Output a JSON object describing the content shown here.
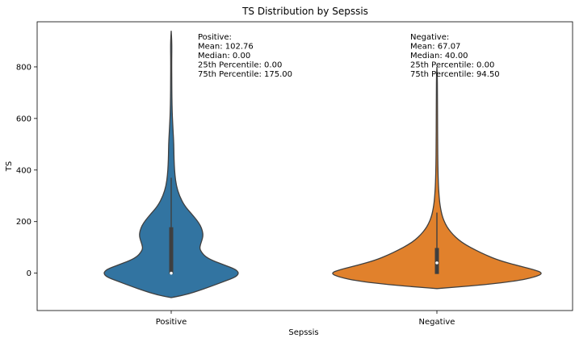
{
  "chart_data": {
    "type": "violin",
    "title": "TS Distribution by Sepssis",
    "xlabel": "Sepssis",
    "ylabel": "TS",
    "categories": [
      "Positive",
      "Negative"
    ],
    "ylim": [
      -145,
      975
    ],
    "yticks": [
      0,
      200,
      400,
      600,
      800
    ],
    "ytick_labels": [
      "0",
      "200",
      "400",
      "600",
      "800"
    ],
    "colors": [
      "#3274a1",
      "#e1812c"
    ],
    "series": [
      {
        "category": "Positive",
        "color": "#3274a1",
        "stats": {
          "min": 0,
          "q1": 0,
          "median": 0,
          "q3": 175,
          "whisker_high": 370,
          "max": 940
        },
        "density_profile": [
          [
            -95,
            0.0
          ],
          [
            -85,
            0.2
          ],
          [
            -70,
            0.38
          ],
          [
            -50,
            0.6
          ],
          [
            -30,
            0.8
          ],
          [
            -15,
            0.95
          ],
          [
            0,
            1.0
          ],
          [
            15,
            0.95
          ],
          [
            30,
            0.8
          ],
          [
            50,
            0.6
          ],
          [
            65,
            0.5
          ],
          [
            80,
            0.45
          ],
          [
            95,
            0.42
          ],
          [
            110,
            0.43
          ],
          [
            125,
            0.45
          ],
          [
            145,
            0.47
          ],
          [
            165,
            0.46
          ],
          [
            185,
            0.43
          ],
          [
            205,
            0.38
          ],
          [
            230,
            0.3
          ],
          [
            260,
            0.2
          ],
          [
            300,
            0.12
          ],
          [
            340,
            0.075
          ],
          [
            380,
            0.055
          ],
          [
            420,
            0.045
          ],
          [
            460,
            0.04
          ],
          [
            500,
            0.038
          ],
          [
            540,
            0.03
          ],
          [
            580,
            0.022
          ],
          [
            620,
            0.015
          ],
          [
            680,
            0.01
          ],
          [
            750,
            0.008
          ],
          [
            820,
            0.007
          ],
          [
            870,
            0.009
          ],
          [
            900,
            0.008
          ],
          [
            940,
            0.0
          ]
        ],
        "annotation": [
          "Positive:",
          "Mean: 102.76",
          "Median: 0.00",
          "25th Percentile: 0.00",
          "75th Percentile: 175.00"
        ]
      },
      {
        "category": "Negative",
        "color": "#e1812c",
        "stats": {
          "min": 0,
          "q1": 0,
          "median": 40,
          "q3": 94.5,
          "whisker_high": 235,
          "max": 800
        },
        "density_profile": [
          [
            -60,
            0.0
          ],
          [
            -55,
            0.15
          ],
          [
            -45,
            0.45
          ],
          [
            -30,
            0.75
          ],
          [
            -15,
            0.92
          ],
          [
            0,
            1.0
          ],
          [
            15,
            0.9
          ],
          [
            30,
            0.75
          ],
          [
            50,
            0.58
          ],
          [
            70,
            0.46
          ],
          [
            90,
            0.36
          ],
          [
            110,
            0.27
          ],
          [
            130,
            0.2
          ],
          [
            150,
            0.15
          ],
          [
            170,
            0.11
          ],
          [
            190,
            0.08
          ],
          [
            220,
            0.05
          ],
          [
            260,
            0.03
          ],
          [
            300,
            0.02
          ],
          [
            350,
            0.013
          ],
          [
            420,
            0.009
          ],
          [
            500,
            0.007
          ],
          [
            600,
            0.006
          ],
          [
            700,
            0.005
          ],
          [
            760,
            0.004
          ],
          [
            800,
            0.0
          ]
        ],
        "annotation": [
          "Negative:",
          "Mean: 67.07",
          "Median: 40.00",
          "25th Percentile: 0.00",
          "75th Percentile: 94.50"
        ]
      }
    ],
    "grid": false
  }
}
